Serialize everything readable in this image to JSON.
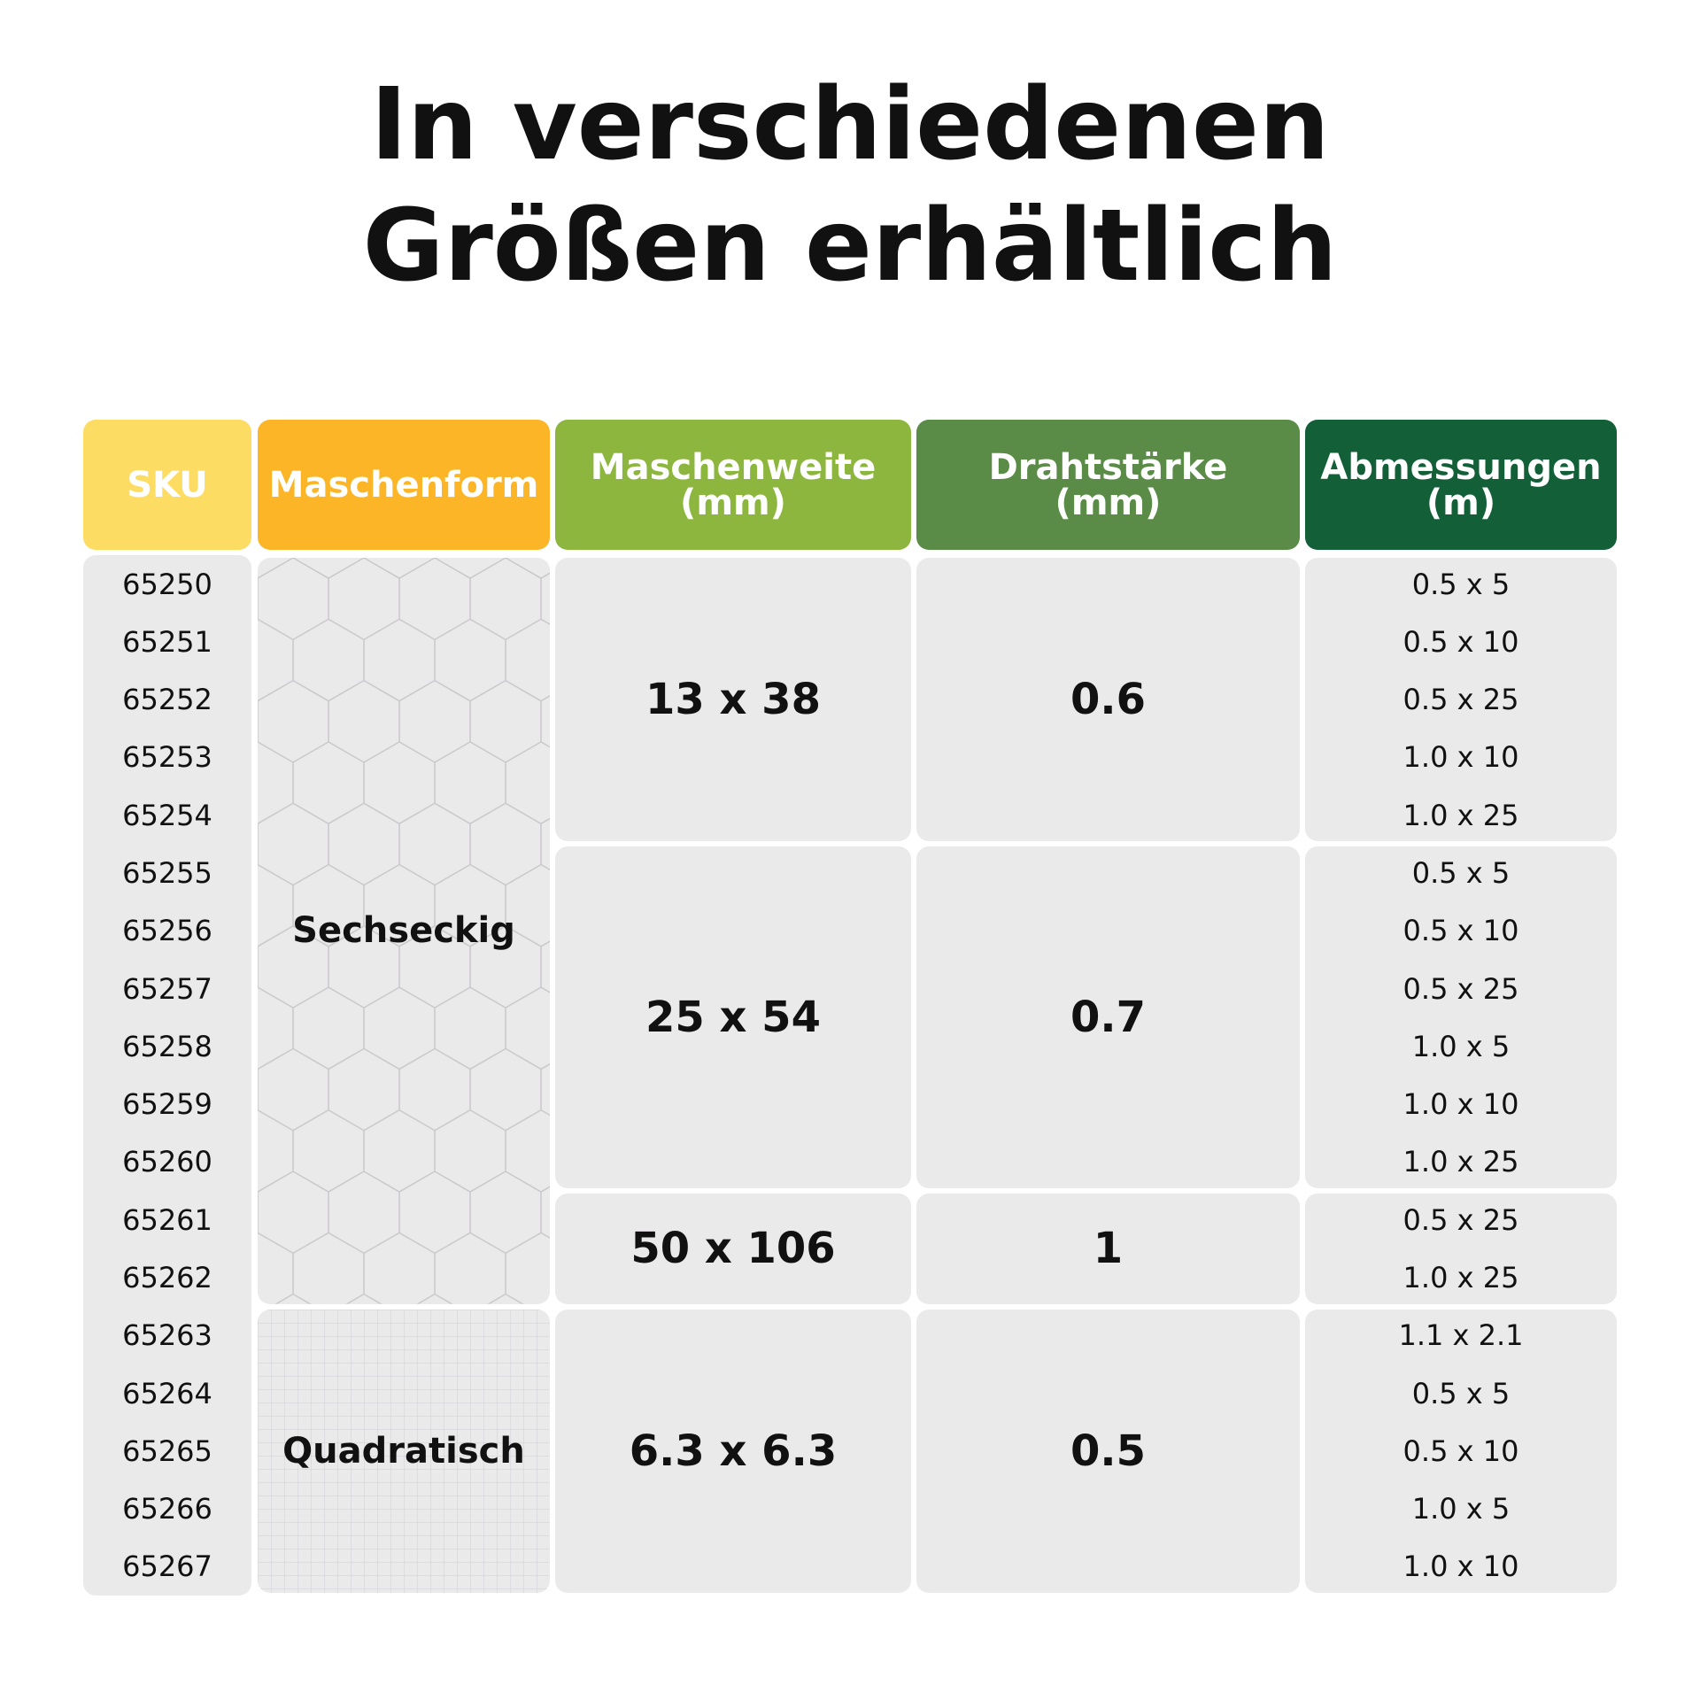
{
  "title": [
    "In verschiedenen",
    "Größen erhältlich"
  ],
  "headers": [
    [
      "SKU"
    ],
    [
      "Maschenform"
    ],
    [
      "Maschenweite",
      "(mm)"
    ],
    [
      "Drahtstärke",
      "(mm)"
    ],
    [
      "Abmessungen",
      "(m)"
    ]
  ],
  "shapes": [
    {
      "label": "Sechseckig",
      "groups": [
        {
          "mesh": "13 x 38",
          "wire": "0.6",
          "items": [
            {
              "sku": "65250",
              "size": "0.5 x 5"
            },
            {
              "sku": "65251",
              "size": "0.5 x 10"
            },
            {
              "sku": "65252",
              "size": "0.5 x 25"
            },
            {
              "sku": "65253",
              "size": "1.0 x 10"
            },
            {
              "sku": "65254",
              "size": "1.0 x 25"
            }
          ]
        },
        {
          "mesh": "25 x 54",
          "wire": "0.7",
          "items": [
            {
              "sku": "65255",
              "size": "0.5 x 5"
            },
            {
              "sku": "65256",
              "size": "0.5 x 10"
            },
            {
              "sku": "65257",
              "size": "0.5 x 25"
            },
            {
              "sku": "65258",
              "size": "1.0 x 5"
            },
            {
              "sku": "65259",
              "size": "1.0 x 10"
            },
            {
              "sku": "65260",
              "size": "1.0 x 25"
            }
          ]
        },
        {
          "mesh": "50 x 106",
          "wire": "1",
          "items": [
            {
              "sku": "65261",
              "size": "0.5 x 25"
            },
            {
              "sku": "65262",
              "size": "1.0 x 25"
            }
          ]
        }
      ]
    },
    {
      "label": "Quadratisch",
      "groups": [
        {
          "mesh": "6.3 x 6.3",
          "wire": "0.5",
          "items": [
            {
              "sku": "65263",
              "size": "1.1 x 2.1"
            },
            {
              "sku": "65264",
              "size": "0.5 x 5"
            },
            {
              "sku": "65265",
              "size": "0.5 x 10"
            },
            {
              "sku": "65266",
              "size": "1.0 x 5"
            },
            {
              "sku": "65267",
              "size": "1.0 x 10"
            }
          ]
        }
      ]
    }
  ]
}
